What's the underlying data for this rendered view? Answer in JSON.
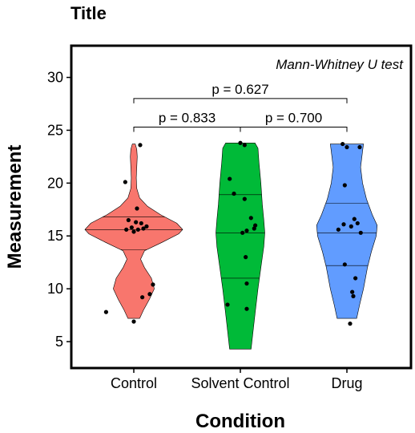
{
  "chart_data": {
    "type": "violin",
    "title": "Title",
    "xlabel": "Condition",
    "ylabel": "Measurement",
    "annotation": "Mann-Whitney U test",
    "ylim": [
      2.5,
      33
    ],
    "yticks": [
      5,
      10,
      15,
      20,
      25,
      30
    ],
    "categories": [
      "Control",
      "Solvent Control",
      "Drug"
    ],
    "colors": [
      "#F8766D",
      "#00BA38",
      "#619CFF"
    ],
    "groups": [
      {
        "category": "Control",
        "range": [
          7.2,
          23.7
        ],
        "quantiles": [
          13.7,
          15.6,
          16.8
        ],
        "profile": [
          [
            7.2,
            0.12
          ],
          [
            8.0,
            0.2
          ],
          [
            9.0,
            0.32
          ],
          [
            10.0,
            0.42
          ],
          [
            11.0,
            0.36
          ],
          [
            12.0,
            0.22
          ],
          [
            12.8,
            0.14
          ],
          [
            13.6,
            0.22
          ],
          [
            14.4,
            0.58
          ],
          [
            15.2,
            0.92
          ],
          [
            15.6,
            1.0
          ],
          [
            16.2,
            0.88
          ],
          [
            17.0,
            0.55
          ],
          [
            17.8,
            0.28
          ],
          [
            18.6,
            0.12
          ],
          [
            19.5,
            0.06
          ],
          [
            20.5,
            0.05
          ],
          [
            21.5,
            0.06
          ],
          [
            22.5,
            0.07
          ],
          [
            23.2,
            0.06
          ],
          [
            23.7,
            0.03
          ]
        ],
        "points": [
          [
            0.06,
            23.6
          ],
          [
            -0.08,
            20.1
          ],
          [
            0.03,
            17.6
          ],
          [
            -0.05,
            16.5
          ],
          [
            0.02,
            16.3
          ],
          [
            0.07,
            16.2
          ],
          [
            0.12,
            15.9
          ],
          [
            -0.02,
            15.8
          ],
          [
            0.09,
            15.7
          ],
          [
            0.04,
            15.6
          ],
          [
            -0.07,
            15.6
          ],
          [
            0.0,
            15.4
          ],
          [
            0.18,
            10.4
          ],
          [
            0.15,
            9.5
          ],
          [
            0.08,
            9.2
          ],
          [
            -0.26,
            7.8
          ],
          [
            0.0,
            6.9
          ]
        ]
      },
      {
        "category": "Solvent Control",
        "range": [
          4.3,
          23.8
        ],
        "quantiles": [
          11.0,
          15.3,
          18.9
        ],
        "profile": [
          [
            4.3,
            0.22
          ],
          [
            6.0,
            0.26
          ],
          [
            8.0,
            0.31
          ],
          [
            10.0,
            0.36
          ],
          [
            12.0,
            0.42
          ],
          [
            14.0,
            0.48
          ],
          [
            15.3,
            0.5
          ],
          [
            16.5,
            0.48
          ],
          [
            18.0,
            0.45
          ],
          [
            20.0,
            0.42
          ],
          [
            22.0,
            0.38
          ],
          [
            23.3,
            0.36
          ],
          [
            23.8,
            0.3
          ]
        ],
        "points": [
          [
            0.0,
            23.8
          ],
          [
            0.04,
            23.6
          ],
          [
            -0.1,
            20.4
          ],
          [
            -0.06,
            19.0
          ],
          [
            0.04,
            18.5
          ],
          [
            0.1,
            16.7
          ],
          [
            0.14,
            16.0
          ],
          [
            0.13,
            15.7
          ],
          [
            0.06,
            15.5
          ],
          [
            0.02,
            15.3
          ],
          [
            0.05,
            13.0
          ],
          [
            0.06,
            10.5
          ],
          [
            -0.12,
            8.5
          ],
          [
            0.06,
            8.1
          ]
        ]
      },
      {
        "category": "Drug",
        "range": [
          7.2,
          23.7
        ],
        "quantiles": [
          12.2,
          15.3,
          18.1
        ],
        "profile": [
          [
            7.2,
            0.2
          ],
          [
            8.5,
            0.26
          ],
          [
            10.0,
            0.34
          ],
          [
            12.0,
            0.42
          ],
          [
            13.5,
            0.5
          ],
          [
            15.0,
            0.6
          ],
          [
            16.0,
            0.62
          ],
          [
            17.0,
            0.52
          ],
          [
            18.5,
            0.4
          ],
          [
            20.0,
            0.32
          ],
          [
            21.5,
            0.28
          ],
          [
            23.0,
            0.32
          ],
          [
            23.7,
            0.34
          ]
        ],
        "points": [
          [
            -0.04,
            23.7
          ],
          [
            0.0,
            23.4
          ],
          [
            0.12,
            23.4
          ],
          [
            -0.02,
            19.8
          ],
          [
            0.07,
            16.6
          ],
          [
            0.1,
            16.2
          ],
          [
            -0.03,
            16.1
          ],
          [
            0.04,
            15.9
          ],
          [
            -0.08,
            15.6
          ],
          [
            0.13,
            15.3
          ],
          [
            -0.02,
            12.3
          ],
          [
            0.08,
            11.0
          ],
          [
            0.05,
            9.7
          ],
          [
            0.06,
            9.3
          ],
          [
            0.03,
            6.7
          ]
        ]
      }
    ],
    "comparisons": [
      {
        "from": "Control",
        "to": "Solvent Control",
        "label": "p =  0.833",
        "y": 25.3
      },
      {
        "from": "Solvent Control",
        "to": "Drug",
        "label": "p =  0.700",
        "y": 25.3
      },
      {
        "from": "Control",
        "to": "Drug",
        "label": "p =  0.627",
        "y": 28.0
      }
    ]
  }
}
